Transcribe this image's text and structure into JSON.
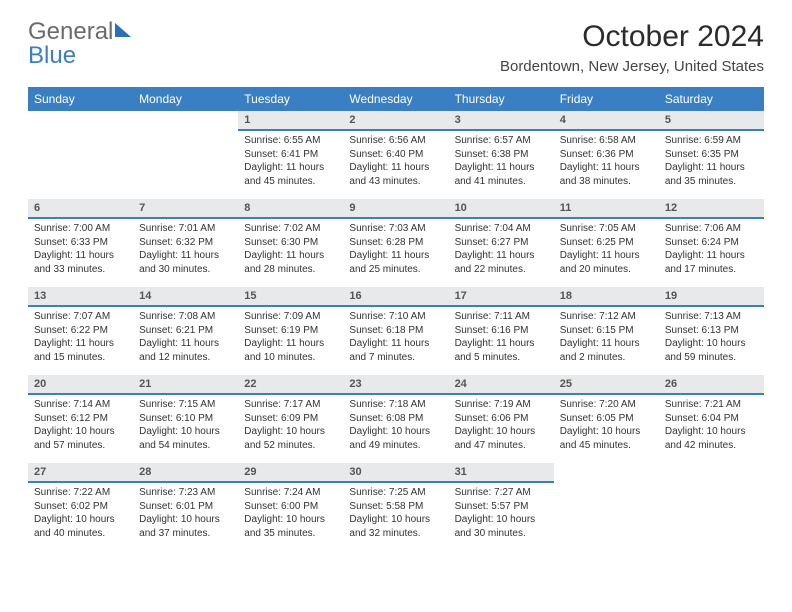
{
  "logo": {
    "word1": "General",
    "word2": "Blue"
  },
  "title": "October 2024",
  "location": "Bordentown, New Jersey, United States",
  "accent_color": "#3a7fc4",
  "header_bg": "#3a7fc4",
  "daynum_bg": "#e8e9ea",
  "day_headers": [
    "Sunday",
    "Monday",
    "Tuesday",
    "Wednesday",
    "Thursday",
    "Friday",
    "Saturday"
  ],
  "weeks": [
    [
      {
        "empty": true
      },
      {
        "empty": true
      },
      {
        "day": "1",
        "sunrise": "Sunrise: 6:55 AM",
        "sunset": "Sunset: 6:41 PM",
        "daylight1": "Daylight: 11 hours",
        "daylight2": "and 45 minutes."
      },
      {
        "day": "2",
        "sunrise": "Sunrise: 6:56 AM",
        "sunset": "Sunset: 6:40 PM",
        "daylight1": "Daylight: 11 hours",
        "daylight2": "and 43 minutes."
      },
      {
        "day": "3",
        "sunrise": "Sunrise: 6:57 AM",
        "sunset": "Sunset: 6:38 PM",
        "daylight1": "Daylight: 11 hours",
        "daylight2": "and 41 minutes."
      },
      {
        "day": "4",
        "sunrise": "Sunrise: 6:58 AM",
        "sunset": "Sunset: 6:36 PM",
        "daylight1": "Daylight: 11 hours",
        "daylight2": "and 38 minutes."
      },
      {
        "day": "5",
        "sunrise": "Sunrise: 6:59 AM",
        "sunset": "Sunset: 6:35 PM",
        "daylight1": "Daylight: 11 hours",
        "daylight2": "and 35 minutes."
      }
    ],
    [
      {
        "day": "6",
        "sunrise": "Sunrise: 7:00 AM",
        "sunset": "Sunset: 6:33 PM",
        "daylight1": "Daylight: 11 hours",
        "daylight2": "and 33 minutes."
      },
      {
        "day": "7",
        "sunrise": "Sunrise: 7:01 AM",
        "sunset": "Sunset: 6:32 PM",
        "daylight1": "Daylight: 11 hours",
        "daylight2": "and 30 minutes."
      },
      {
        "day": "8",
        "sunrise": "Sunrise: 7:02 AM",
        "sunset": "Sunset: 6:30 PM",
        "daylight1": "Daylight: 11 hours",
        "daylight2": "and 28 minutes."
      },
      {
        "day": "9",
        "sunrise": "Sunrise: 7:03 AM",
        "sunset": "Sunset: 6:28 PM",
        "daylight1": "Daylight: 11 hours",
        "daylight2": "and 25 minutes."
      },
      {
        "day": "10",
        "sunrise": "Sunrise: 7:04 AM",
        "sunset": "Sunset: 6:27 PM",
        "daylight1": "Daylight: 11 hours",
        "daylight2": "and 22 minutes."
      },
      {
        "day": "11",
        "sunrise": "Sunrise: 7:05 AM",
        "sunset": "Sunset: 6:25 PM",
        "daylight1": "Daylight: 11 hours",
        "daylight2": "and 20 minutes."
      },
      {
        "day": "12",
        "sunrise": "Sunrise: 7:06 AM",
        "sunset": "Sunset: 6:24 PM",
        "daylight1": "Daylight: 11 hours",
        "daylight2": "and 17 minutes."
      }
    ],
    [
      {
        "day": "13",
        "sunrise": "Sunrise: 7:07 AM",
        "sunset": "Sunset: 6:22 PM",
        "daylight1": "Daylight: 11 hours",
        "daylight2": "and 15 minutes."
      },
      {
        "day": "14",
        "sunrise": "Sunrise: 7:08 AM",
        "sunset": "Sunset: 6:21 PM",
        "daylight1": "Daylight: 11 hours",
        "daylight2": "and 12 minutes."
      },
      {
        "day": "15",
        "sunrise": "Sunrise: 7:09 AM",
        "sunset": "Sunset: 6:19 PM",
        "daylight1": "Daylight: 11 hours",
        "daylight2": "and 10 minutes."
      },
      {
        "day": "16",
        "sunrise": "Sunrise: 7:10 AM",
        "sunset": "Sunset: 6:18 PM",
        "daylight1": "Daylight: 11 hours",
        "daylight2": "and 7 minutes."
      },
      {
        "day": "17",
        "sunrise": "Sunrise: 7:11 AM",
        "sunset": "Sunset: 6:16 PM",
        "daylight1": "Daylight: 11 hours",
        "daylight2": "and 5 minutes."
      },
      {
        "day": "18",
        "sunrise": "Sunrise: 7:12 AM",
        "sunset": "Sunset: 6:15 PM",
        "daylight1": "Daylight: 11 hours",
        "daylight2": "and 2 minutes."
      },
      {
        "day": "19",
        "sunrise": "Sunrise: 7:13 AM",
        "sunset": "Sunset: 6:13 PM",
        "daylight1": "Daylight: 10 hours",
        "daylight2": "and 59 minutes."
      }
    ],
    [
      {
        "day": "20",
        "sunrise": "Sunrise: 7:14 AM",
        "sunset": "Sunset: 6:12 PM",
        "daylight1": "Daylight: 10 hours",
        "daylight2": "and 57 minutes."
      },
      {
        "day": "21",
        "sunrise": "Sunrise: 7:15 AM",
        "sunset": "Sunset: 6:10 PM",
        "daylight1": "Daylight: 10 hours",
        "daylight2": "and 54 minutes."
      },
      {
        "day": "22",
        "sunrise": "Sunrise: 7:17 AM",
        "sunset": "Sunset: 6:09 PM",
        "daylight1": "Daylight: 10 hours",
        "daylight2": "and 52 minutes."
      },
      {
        "day": "23",
        "sunrise": "Sunrise: 7:18 AM",
        "sunset": "Sunset: 6:08 PM",
        "daylight1": "Daylight: 10 hours",
        "daylight2": "and 49 minutes."
      },
      {
        "day": "24",
        "sunrise": "Sunrise: 7:19 AM",
        "sunset": "Sunset: 6:06 PM",
        "daylight1": "Daylight: 10 hours",
        "daylight2": "and 47 minutes."
      },
      {
        "day": "25",
        "sunrise": "Sunrise: 7:20 AM",
        "sunset": "Sunset: 6:05 PM",
        "daylight1": "Daylight: 10 hours",
        "daylight2": "and 45 minutes."
      },
      {
        "day": "26",
        "sunrise": "Sunrise: 7:21 AM",
        "sunset": "Sunset: 6:04 PM",
        "daylight1": "Daylight: 10 hours",
        "daylight2": "and 42 minutes."
      }
    ],
    [
      {
        "day": "27",
        "sunrise": "Sunrise: 7:22 AM",
        "sunset": "Sunset: 6:02 PM",
        "daylight1": "Daylight: 10 hours",
        "daylight2": "and 40 minutes."
      },
      {
        "day": "28",
        "sunrise": "Sunrise: 7:23 AM",
        "sunset": "Sunset: 6:01 PM",
        "daylight1": "Daylight: 10 hours",
        "daylight2": "and 37 minutes."
      },
      {
        "day": "29",
        "sunrise": "Sunrise: 7:24 AM",
        "sunset": "Sunset: 6:00 PM",
        "daylight1": "Daylight: 10 hours",
        "daylight2": "and 35 minutes."
      },
      {
        "day": "30",
        "sunrise": "Sunrise: 7:25 AM",
        "sunset": "Sunset: 5:58 PM",
        "daylight1": "Daylight: 10 hours",
        "daylight2": "and 32 minutes."
      },
      {
        "day": "31",
        "sunrise": "Sunrise: 7:27 AM",
        "sunset": "Sunset: 5:57 PM",
        "daylight1": "Daylight: 10 hours",
        "daylight2": "and 30 minutes."
      },
      {
        "empty": true
      },
      {
        "empty": true
      }
    ]
  ]
}
